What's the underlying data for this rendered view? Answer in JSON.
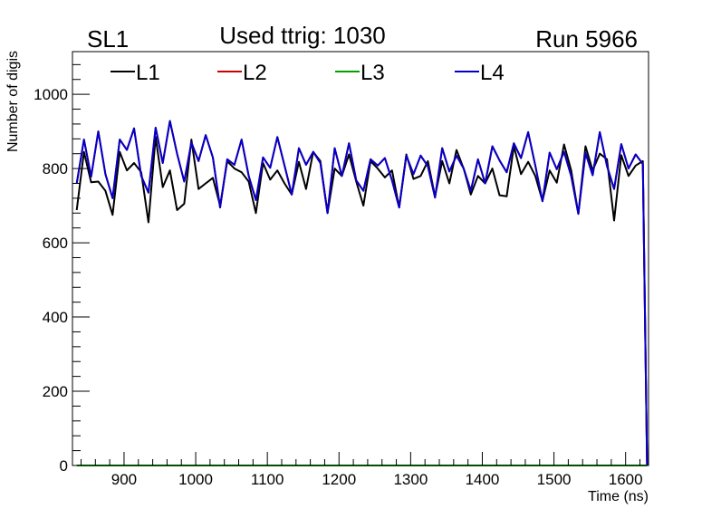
{
  "header": {
    "left_label": "SL1",
    "center_title": "Used ttrig: 1030",
    "right_label": "Run 5966"
  },
  "chart_data": {
    "type": "line",
    "title": "Used ttrig: 1030",
    "xlabel": "Time (ns)",
    "ylabel": "Number of digis",
    "xlim": [
      828,
      1632
    ],
    "ylim": [
      0,
      1115
    ],
    "xticks": [
      900,
      1000,
      1100,
      1200,
      1300,
      1400,
      1500,
      1600
    ],
    "yticks": [
      0,
      200,
      400,
      600,
      800,
      1000
    ],
    "grid": false,
    "legend_position": "top",
    "x": [
      834,
      844,
      854,
      864,
      874,
      884,
      894,
      904,
      914,
      924,
      934,
      944,
      954,
      964,
      974,
      984,
      994,
      1004,
      1014,
      1024,
      1034,
      1044,
      1054,
      1064,
      1074,
      1084,
      1094,
      1104,
      1114,
      1124,
      1134,
      1144,
      1154,
      1164,
      1174,
      1184,
      1194,
      1204,
      1214,
      1224,
      1234,
      1244,
      1254,
      1264,
      1274,
      1284,
      1294,
      1304,
      1314,
      1324,
      1334,
      1344,
      1354,
      1364,
      1374,
      1384,
      1394,
      1404,
      1414,
      1424,
      1434,
      1444,
      1454,
      1464,
      1474,
      1484,
      1494,
      1504,
      1514,
      1524,
      1534,
      1544,
      1554,
      1564,
      1574,
      1584,
      1594,
      1604,
      1614,
      1624,
      1630
    ],
    "series": [
      {
        "name": "L1",
        "color": "#000000",
        "values": [
          688,
          845,
          763,
          765,
          740,
          675,
          845,
          795,
          815,
          790,
          655,
          885,
          750,
          795,
          688,
          705,
          878,
          745,
          760,
          775,
          700,
          820,
          800,
          790,
          765,
          680,
          815,
          770,
          795,
          760,
          730,
          818,
          745,
          845,
          820,
          680,
          800,
          780,
          838,
          765,
          700,
          820,
          800,
          776,
          795,
          695,
          838,
          772,
          780,
          820,
          725,
          820,
          760,
          850,
          800,
          730,
          780,
          760,
          800,
          728,
          725,
          860,
          785,
          818,
          780,
          713,
          795,
          762,
          865,
          795,
          678,
          860,
          795,
          840,
          825,
          660,
          836,
          780,
          808,
          820,
          0
        ]
      },
      {
        "name": "L2",
        "color": "#cc0000",
        "values": [
          760,
          878,
          778,
          900,
          785,
          720,
          878,
          850,
          908,
          780,
          735,
          910,
          815,
          928,
          840,
          765,
          870,
          820,
          890,
          830,
          695,
          825,
          810,
          878,
          780,
          715,
          830,
          802,
          885,
          808,
          730,
          855,
          810,
          845,
          815,
          680,
          855,
          780,
          868,
          768,
          740,
          825,
          808,
          828,
          768,
          695,
          835,
          785,
          835,
          806,
          722,
          855,
          792,
          835,
          800,
          740,
          825,
          760,
          860,
          822,
          790,
          868,
          828,
          898,
          808,
          712,
          843,
          798,
          845,
          780,
          678,
          842,
          782,
          898,
          807,
          745,
          866,
          800,
          838,
          812,
          0
        ]
      },
      {
        "name": "L3",
        "color": "#00a000",
        "values": [
          0,
          0,
          0,
          0,
          0,
          0,
          0,
          0,
          0,
          0,
          0,
          0,
          0,
          0,
          0,
          0,
          0,
          0,
          0,
          0,
          0,
          0,
          0,
          0,
          0,
          0,
          0,
          0,
          0,
          0,
          0,
          0,
          0,
          0,
          0,
          0,
          0,
          0,
          0,
          0,
          0,
          0,
          0,
          0,
          0,
          0,
          0,
          0,
          0,
          0,
          0,
          0,
          0,
          0,
          0,
          0,
          0,
          0,
          0,
          0,
          0,
          0,
          0,
          0,
          0,
          0,
          0,
          0,
          0,
          0,
          0,
          0,
          0,
          0,
          0,
          0,
          0,
          0,
          0,
          0,
          0
        ]
      },
      {
        "name": "L4",
        "color": "#0000cc",
        "values": [
          760,
          878,
          778,
          900,
          785,
          720,
          878,
          850,
          908,
          780,
          735,
          910,
          815,
          928,
          840,
          765,
          870,
          820,
          890,
          830,
          695,
          825,
          810,
          878,
          780,
          715,
          830,
          802,
          885,
          808,
          730,
          855,
          810,
          845,
          815,
          680,
          855,
          780,
          868,
          768,
          740,
          825,
          808,
          828,
          768,
          695,
          835,
          785,
          835,
          806,
          722,
          855,
          792,
          835,
          800,
          740,
          825,
          760,
          860,
          822,
          790,
          868,
          828,
          898,
          808,
          712,
          843,
          798,
          845,
          780,
          678,
          842,
          782,
          898,
          807,
          745,
          866,
          800,
          838,
          812,
          0
        ]
      }
    ]
  }
}
